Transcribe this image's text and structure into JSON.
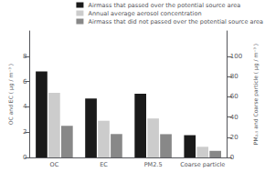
{
  "chart_data": {
    "type": "bar",
    "categories": [
      "OC",
      "EC",
      "PM2.5",
      "Coarse particle"
    ],
    "series": [
      {
        "name": "Airmass that passed over the potential source area",
        "color": "#1a1a1a",
        "values": [
          6.8,
          4.65,
          null,
          null
        ]
      },
      {
        "name": "Annual average aerosol concentration",
        "color": "#cccccc",
        "values": [
          5.1,
          2.9,
          null,
          null
        ]
      },
      {
        "name": "Airmass that did not passed over the potential source area",
        "color": "#888888",
        "values": [
          2.5,
          1.85,
          null,
          null
        ]
      },
      {
        "name": "Airmass that passed over the potential source area",
        "color": "#1a1a1a",
        "axis": "y2",
        "values": [
          null,
          null,
          63.0,
          22.0
        ]
      },
      {
        "name": "Annual average aerosol concentration",
        "color": "#cccccc",
        "axis": "y2",
        "values": [
          null,
          null,
          38.5,
          10.5
        ]
      },
      {
        "name": "Airmass that did not passed over the potential source area",
        "color": "#888888",
        "axis": "y2",
        "values": [
          null,
          null,
          23.0,
          6.5
        ]
      }
    ],
    "ylabel": "OC and EC ( μg / m⁻³ )",
    "y2label": "PM₂.₅ and Coarse particle ( μg / m⁻³ )",
    "ylim": [
      0,
      10
    ],
    "yticks": [
      0,
      2,
      4,
      6,
      8
    ],
    "y2lim": [
      0,
      125
    ],
    "y2ticks": [
      0,
      20,
      40,
      60,
      80,
      100
    ],
    "grid": false,
    "legend": "upper right"
  }
}
